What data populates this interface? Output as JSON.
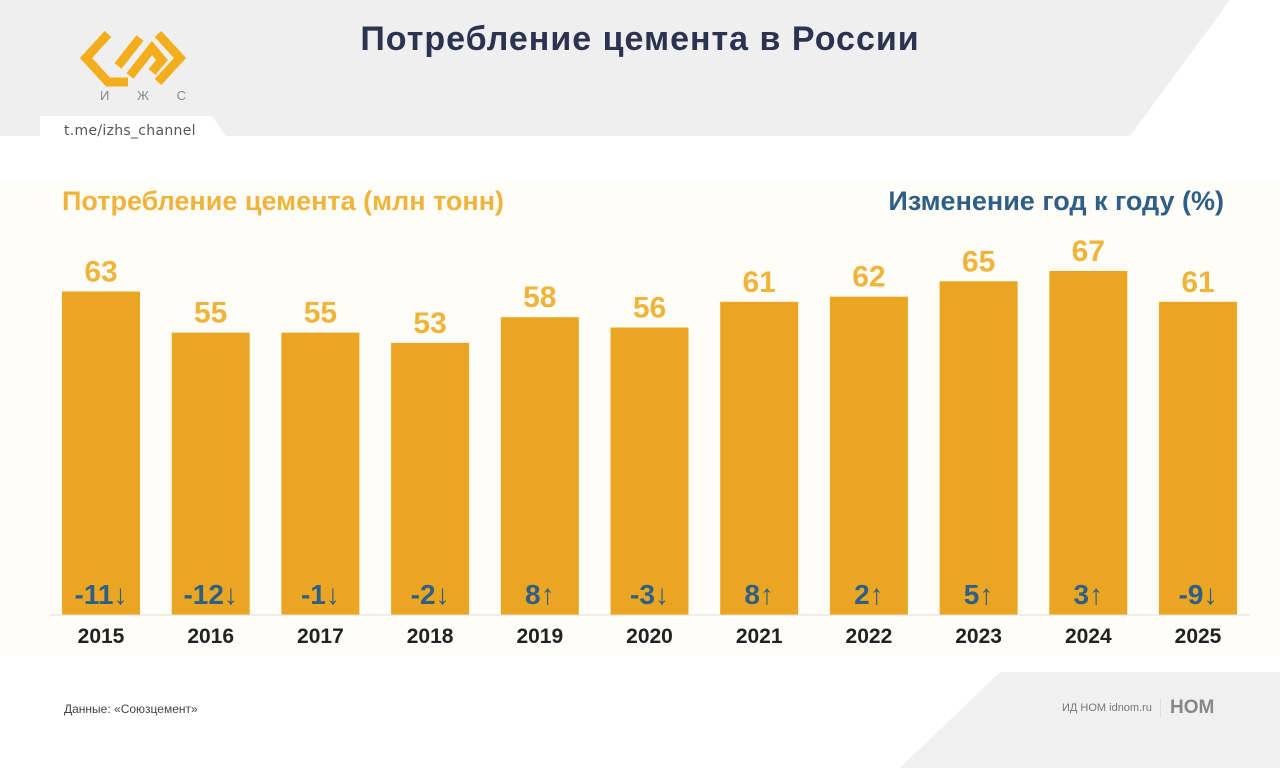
{
  "header": {
    "title": "Потребление цемента в России",
    "logo_text": "И Ж С",
    "channel": "t.me/izhs_channel"
  },
  "footer": {
    "source": "Данные: «Союзцемент»",
    "publisher": "ИД НОМ idnom.ru",
    "publisher_logo": "НОМ"
  },
  "colors": {
    "bar": "#eaa622",
    "value": "#f0b43a",
    "change": "#2f5f86",
    "title": "#2b3350"
  },
  "chart_data": {
    "type": "bar",
    "left_title": "Потребление цемента (млн тонн)",
    "right_title": "Изменение год к году (%)",
    "categories": [
      "2015",
      "2016",
      "2017",
      "2018",
      "2019",
      "2020",
      "2021",
      "2022",
      "2023",
      "2024",
      "2025"
    ],
    "values": [
      63,
      55,
      55,
      53,
      58,
      56,
      61,
      62,
      65,
      67,
      61
    ],
    "change_labels": [
      "-11↓",
      "-12↓",
      "-1↓",
      "-2↓",
      "8↑",
      "-3↓",
      "8↑",
      "2↑",
      "5↑",
      "3↑",
      "-9↓"
    ],
    "ylim": [
      0,
      67
    ]
  }
}
